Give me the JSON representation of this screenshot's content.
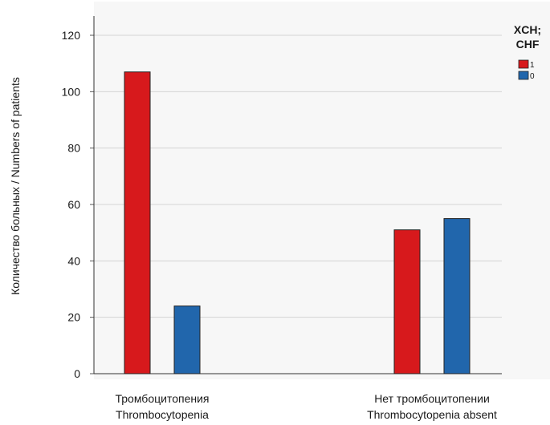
{
  "chart_data": {
    "type": "bar",
    "categories": [
      [
        "Тромбоцитопения",
        "Thrombocytopenia"
      ],
      [
        "Нет тромбоцитопении",
        "Thrombocytopenia absent"
      ]
    ],
    "series": [
      {
        "name": "1",
        "color": "#d7191c",
        "values": [
          107,
          51
        ]
      },
      {
        "name": "0",
        "color": "#2166ac",
        "values": [
          24,
          55
        ]
      }
    ],
    "ylabel": "Количество больных / Numbers of patients",
    "xlabel": "",
    "ylim": [
      0,
      120
    ],
    "yticks": [
      0,
      20,
      40,
      60,
      80,
      100,
      120
    ],
    "grid": true,
    "legend": {
      "title_lines": [
        "XCH;",
        "CHF"
      ],
      "placement": "top-right"
    }
  }
}
